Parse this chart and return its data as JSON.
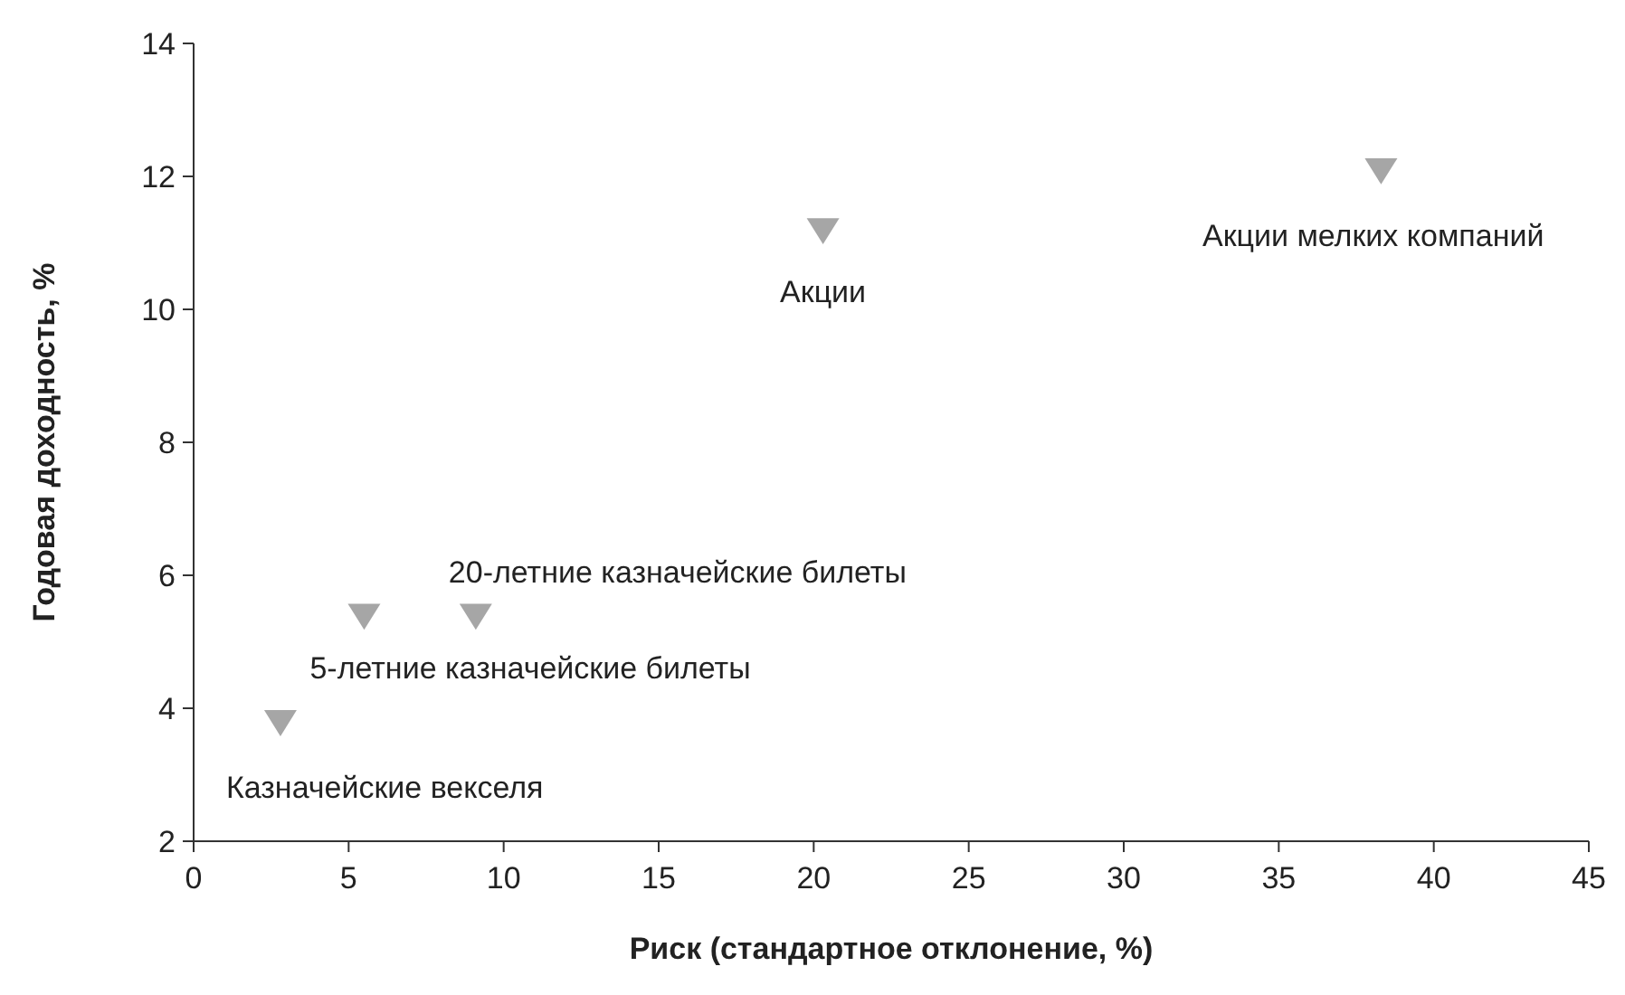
{
  "chart_data": {
    "type": "scatter",
    "xlabel": "Риск (стандартное отклонение, %)",
    "ylabel": "Годовая доходность, %",
    "x": [
      2.8,
      5.5,
      9.1,
      20.3,
      38.3
    ],
    "series": [
      {
        "color": "#a6a6a6",
        "values": [
          3.8,
          5.4,
          5.4,
          11.2,
          12.1
        ]
      }
    ],
    "marker": "triangle",
    "grid": false,
    "xlim": [
      0,
      45
    ],
    "xticks": [
      0,
      5,
      10,
      15,
      20,
      25,
      30,
      35,
      40,
      45
    ],
    "ylim": [
      2,
      14
    ],
    "yticks": [
      2,
      4,
      6,
      8,
      10,
      12,
      14
    ],
    "annotations": [
      {
        "text": "Казначейские векселя",
        "x": 2.8,
        "y": 3.8
      },
      {
        "text": "5-летние казначейские билеты",
        "x": 5.5,
        "y": 5.4
      },
      {
        "text": "20-летние казначейские билеты",
        "x": 9.1,
        "y": 5.4
      },
      {
        "text": "Акции",
        "x": 20.3,
        "y": 11.2
      },
      {
        "text": "Акции мелких компаний",
        "x": 38.3,
        "y": 12.1
      }
    ]
  }
}
